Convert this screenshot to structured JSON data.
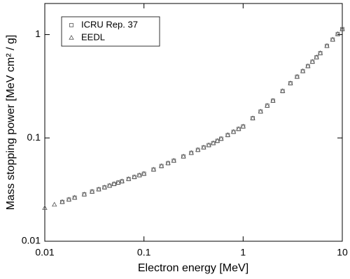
{
  "chart_data": {
    "type": "scatter",
    "xlabel": "Electron energy [MeV]",
    "ylabel": "Mass stopping power [MeV cm² / g]",
    "xscale": "log",
    "yscale": "log",
    "xlim": [
      0.01,
      10
    ],
    "ylim": [
      0.01,
      2
    ],
    "xticks": [
      0.01,
      0.1,
      1,
      10
    ],
    "yticks": [
      0.01,
      0.1,
      1
    ],
    "legend": "upper left",
    "series": [
      {
        "name": "ICRU Rep. 37",
        "marker": "square",
        "color": "#555555",
        "x": [
          0.015,
          0.0175,
          0.02,
          0.025,
          0.03,
          0.035,
          0.04,
          0.045,
          0.05,
          0.055,
          0.06,
          0.07,
          0.08,
          0.09,
          0.1,
          0.125,
          0.15,
          0.175,
          0.2,
          0.25,
          0.3,
          0.35,
          0.4,
          0.45,
          0.5,
          0.55,
          0.6,
          0.7,
          0.8,
          0.9,
          1,
          1.25,
          1.5,
          1.75,
          2,
          2.5,
          3,
          3.5,
          4,
          4.5,
          5,
          5.5,
          6,
          7,
          8,
          9,
          10
        ],
        "values": [
          0.024,
          0.0253,
          0.0264,
          0.0284,
          0.0302,
          0.0318,
          0.0332,
          0.0345,
          0.0358,
          0.0369,
          0.038,
          0.04,
          0.0418,
          0.0435,
          0.045,
          0.0494,
          0.0534,
          0.0569,
          0.0602,
          0.0661,
          0.0716,
          0.0765,
          0.0809,
          0.0851,
          0.089,
          0.0936,
          0.0981,
          0.1065,
          0.1145,
          0.122,
          0.129,
          0.155,
          0.18,
          0.205,
          0.229,
          0.284,
          0.338,
          0.391,
          0.443,
          0.495,
          0.546,
          0.603,
          0.661,
          0.777,
          0.894,
          1.012,
          1.13
        ]
      },
      {
        "name": "EEDL",
        "marker": "triangle",
        "color": "#555555",
        "x": [
          0.01,
          0.0125,
          0.015,
          0.0175,
          0.02,
          0.025,
          0.03,
          0.035,
          0.04,
          0.045,
          0.05,
          0.055,
          0.06,
          0.07,
          0.08,
          0.09,
          0.1,
          0.125,
          0.15,
          0.175,
          0.2,
          0.25,
          0.3,
          0.35,
          0.4,
          0.45,
          0.5,
          0.55,
          0.6,
          0.7,
          0.8,
          0.9,
          1,
          1.25,
          1.5,
          1.75,
          2,
          2.5,
          3,
          3.5,
          4,
          4.5,
          5,
          5.5,
          6,
          7,
          8,
          9,
          10
        ],
        "values": [
          0.021,
          0.0226,
          0.024,
          0.0253,
          0.0264,
          0.0284,
          0.0302,
          0.0318,
          0.0332,
          0.0345,
          0.0358,
          0.0369,
          0.038,
          0.04,
          0.0418,
          0.0435,
          0.045,
          0.0494,
          0.0534,
          0.0569,
          0.0602,
          0.0661,
          0.0716,
          0.0765,
          0.0809,
          0.0851,
          0.089,
          0.0936,
          0.0981,
          0.1065,
          0.1145,
          0.122,
          0.129,
          0.155,
          0.18,
          0.205,
          0.229,
          0.284,
          0.338,
          0.391,
          0.443,
          0.495,
          0.546,
          0.603,
          0.661,
          0.777,
          0.894,
          1.012,
          1.13
        ]
      }
    ]
  }
}
